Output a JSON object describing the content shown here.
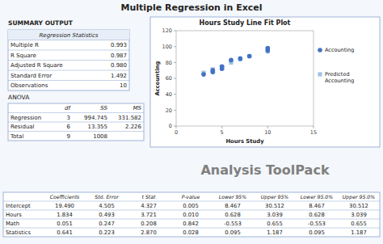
{
  "title": "Multiple Regression in Excel",
  "subtitle": "SUMMARY OUTPUT",
  "annotations": [
    "Analysis ToolPack"
  ],
  "chart_data": [
    {
      "type": "scatter",
      "title": "Hours Study Line Fit  Plot",
      "x_label": "Hours Study",
      "y_label": "Accounting",
      "xlim": [
        0,
        15
      ],
      "xticks": [
        0,
        5,
        10,
        15
      ],
      "ylim": [
        0,
        120
      ],
      "yticks": [
        0,
        20,
        40,
        60,
        80,
        100,
        120
      ],
      "grid": false,
      "legend": "right",
      "series": [
        {
          "name": "Accounting",
          "color": "#4472c4",
          "marker": "circle",
          "x": [
            3,
            4,
            4,
            5,
            5,
            6,
            7,
            8,
            10,
            10
          ],
          "values": [
            65,
            70,
            68,
            72,
            75,
            83,
            85,
            88,
            95,
            98
          ]
        },
        {
          "name": "Predicted\nAccounting",
          "color": "#9dc3e6",
          "marker": "square",
          "x": [
            3,
            4,
            4,
            5,
            5,
            6,
            7,
            8,
            10,
            10
          ],
          "values": [
            67,
            71,
            71,
            74,
            74,
            80,
            84,
            88,
            94,
            97
          ]
        }
      ]
    },
    {
      "type": "table",
      "title": "Regression Statistics",
      "rows": [
        [
          "Multiple R",
          "0.993"
        ],
        [
          "R Square",
          "0.987"
        ],
        [
          "Adjusted R Square",
          "0.980"
        ],
        [
          "Standard Error",
          "1.492"
        ],
        [
          "Observations",
          "10"
        ]
      ]
    },
    {
      "type": "table",
      "title": "ANOVA",
      "columns": [
        "df",
        "SS",
        "MS"
      ],
      "rows": [
        [
          "Regression",
          "3",
          "994.745",
          "331.582"
        ],
        [
          "Residual",
          "6",
          "13.355",
          "2.226"
        ],
        [
          "Total",
          "9",
          "1008",
          null
        ]
      ]
    },
    {
      "type": "table",
      "columns": [
        "Coefficients",
        "Std. Error",
        "t Stat",
        "P-value",
        "Lower 95%",
        "Upper 95%",
        "Lower 95.0%",
        "Upper 95.0%"
      ],
      "rows": [
        [
          "Intercept",
          "19.490",
          "4.505",
          "4.327",
          "0.005",
          "8.467",
          "30.512",
          "8.467",
          "30.512"
        ],
        [
          "Hours",
          "1.834",
          "0.493",
          "3.721",
          "0.010",
          "0.628",
          "3.039",
          "0.628",
          "3.039"
        ],
        [
          "Math",
          "0.051",
          "0.247",
          "0.208",
          "0.842",
          "-0.553",
          "0.655",
          "-0.553",
          "0.655"
        ],
        [
          "Statistics",
          "0.641",
          "0.223",
          "2.870",
          "0.028",
          "0.095",
          "1.187",
          "0.095",
          "1.187"
        ]
      ]
    }
  ]
}
